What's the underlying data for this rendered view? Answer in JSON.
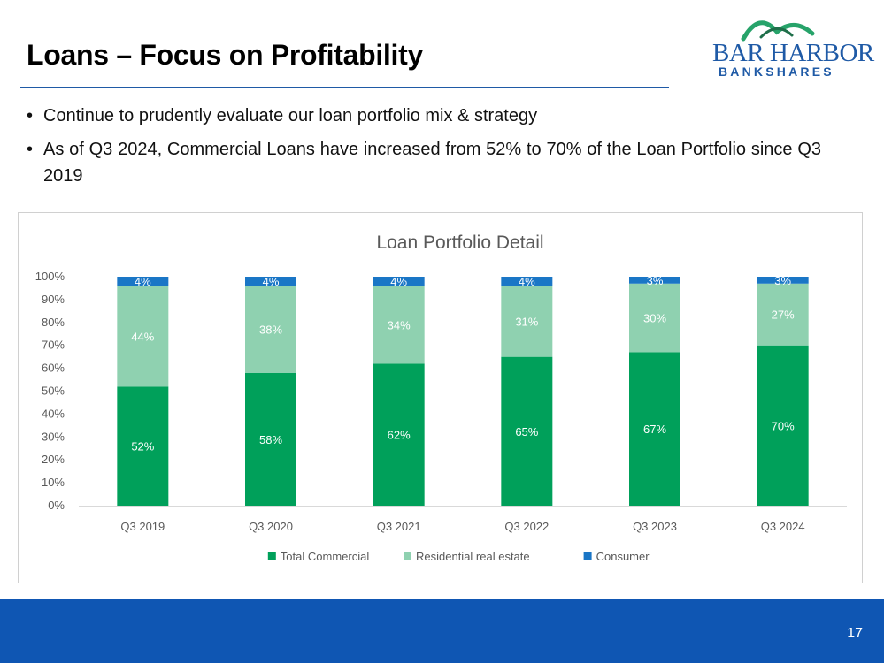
{
  "slide": {
    "title": "Loans – Focus on Profitability",
    "page_number": "17",
    "bullets": [
      "Continue to prudently evaluate our loan portfolio mix & strategy",
      "As of Q3 2024, Commercial Loans have increased from 52% to 70% of the Loan Portfolio since Q3 2019"
    ],
    "bullet_glyph": "•"
  },
  "logo": {
    "line1": "BAR HARBOR",
    "line2": "BANKSHARES",
    "colors": {
      "arc_green": "#27a36a",
      "arc_dark": "#1f6f4a",
      "text_blue": "#1f5aa6"
    }
  },
  "colors": {
    "title_rule": "#1f5aa6",
    "footer": "#0f56b3"
  },
  "chart_data": {
    "type": "bar",
    "stacked": true,
    "title": "Loan Portfolio Detail",
    "categories": [
      "Q3 2019",
      "Q3 2020",
      "Q3 2021",
      "Q3 2022",
      "Q3 2023",
      "Q3 2024"
    ],
    "series": [
      {
        "name": "Total Commercial",
        "color": "#00a05a",
        "values": [
          52,
          58,
          62,
          65,
          67,
          70
        ],
        "labels": [
          "52%",
          "58%",
          "62%",
          "65%",
          "67%",
          "70%"
        ]
      },
      {
        "name": "Residential real estate",
        "color": "#8fd1b0",
        "values": [
          44,
          38,
          34,
          31,
          30,
          27
        ],
        "labels": [
          "44%",
          "38%",
          "34%",
          "31%",
          "30%",
          "27%"
        ]
      },
      {
        "name": "Consumer",
        "color": "#1a76c6",
        "values": [
          4,
          4,
          4,
          4,
          3,
          3
        ],
        "labels": [
          "4%",
          "4%",
          "4%",
          "4%",
          "3%",
          "3%"
        ]
      }
    ],
    "ylim": [
      0,
      100
    ],
    "yticks": [
      "0%",
      "10%",
      "20%",
      "30%",
      "40%",
      "50%",
      "60%",
      "70%",
      "80%",
      "90%",
      "100%"
    ],
    "legend_position": "bottom",
    "grid": false
  }
}
